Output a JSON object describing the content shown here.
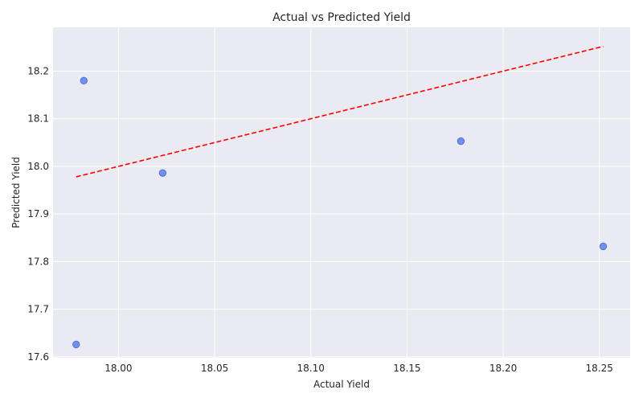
{
  "chart_data": {
    "type": "scatter",
    "title": "Actual vs Predicted Yield",
    "xlabel": "Actual Yield",
    "ylabel": "Predicted Yield",
    "xlim": [
      17.966,
      18.266
    ],
    "ylim": [
      17.598,
      18.292
    ],
    "xticks": [
      "18.00",
      "18.05",
      "18.10",
      "18.15",
      "18.20",
      "18.25"
    ],
    "yticks": [
      "17.6",
      "17.7",
      "17.8",
      "17.9",
      "18.0",
      "18.1",
      "18.2"
    ],
    "grid": true,
    "points": [
      {
        "x": 17.978,
        "y": 17.626
      },
      {
        "x": 17.982,
        "y": 18.18
      },
      {
        "x": 18.023,
        "y": 17.986
      },
      {
        "x": 18.178,
        "y": 18.053
      },
      {
        "x": 18.252,
        "y": 17.832
      }
    ],
    "reference_line": {
      "x": [
        17.978,
        18.252
      ],
      "y": [
        17.978,
        18.252
      ],
      "style": "dashed"
    },
    "colors": {
      "points": "#4169e1",
      "reference_line": "#ff0000",
      "background": "#eaeaf2"
    }
  }
}
